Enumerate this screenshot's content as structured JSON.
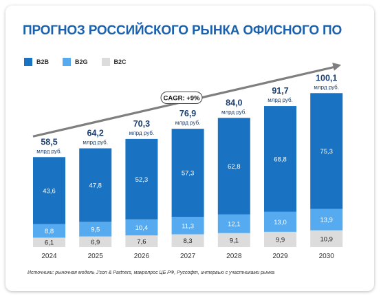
{
  "title": "ПРОГНОЗ РОССИЙСКОГО РЫНКА ОФИСНОГО ПО",
  "cagr_label": "CAGR: +9%",
  "unit_label": "млрд руб.",
  "source": "Источники: рыночная модель J'son & Partners, макропрос ЦБ РФ, Руссофт, интервью с участниками рынка",
  "colors": {
    "title": "#1b61ad",
    "b2b": "#1a73c2",
    "b2g": "#56abf0",
    "b2c": "#dcdcdc",
    "arrow": "#7f7f7f"
  },
  "legend": [
    {
      "label": "B2B",
      "color": "#1a73c2"
    },
    {
      "label": "B2G",
      "color": "#56abf0"
    },
    {
      "label": "B2C",
      "color": "#dcdcdc"
    }
  ],
  "chart_data": {
    "type": "bar",
    "stacked": true,
    "title": "ПРОГНОЗ РОССИЙСКОГО РЫНКА ОФИСНОГО ПО",
    "categories": [
      "2024",
      "2025",
      "2026",
      "2027",
      "2028",
      "2029",
      "2030"
    ],
    "series": [
      {
        "name": "B2C",
        "values": [
          6.1,
          6.9,
          7.6,
          8.3,
          9.1,
          9.9,
          10.9
        ],
        "labels": [
          "6,1",
          "6,9",
          "7,6",
          "8,3",
          "9,1",
          "9,9",
          "10,9"
        ]
      },
      {
        "name": "B2G",
        "values": [
          8.8,
          9.5,
          10.4,
          11.3,
          12.1,
          13.0,
          13.9
        ],
        "labels": [
          "8,8",
          "9,5",
          "10,4",
          "11,3",
          "12,1",
          "13,0",
          "13,9"
        ]
      },
      {
        "name": "B2B",
        "values": [
          43.6,
          47.8,
          52.3,
          57.3,
          62.8,
          68.8,
          75.3
        ],
        "labels": [
          "43,6",
          "47,8",
          "52,3",
          "57,3",
          "62,8",
          "68,8",
          "75,3"
        ]
      }
    ],
    "totals": [
      58.5,
      64.2,
      70.3,
      76.9,
      84.0,
      91.7,
      100.1
    ],
    "total_labels": [
      "58,5",
      "64,2",
      "70,3",
      "76,9",
      "84,0",
      "91,7",
      "100,1"
    ],
    "legend_position": "top-left",
    "grid": false
  }
}
